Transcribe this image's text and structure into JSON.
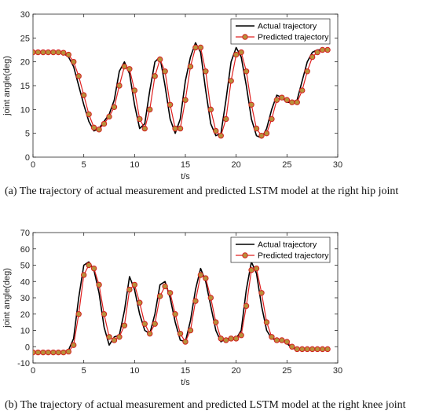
{
  "captions": {
    "a": "(a)   The trajectory of actual measurement and predicted LSTM model at the right hip joint",
    "b": "(b)   The trajectory of actual measurement and predicted LSTM model at the right knee joint"
  },
  "colors": {
    "actual": "#000000",
    "predicted_line": "#e02020",
    "predicted_marker_fill": "#b8913a",
    "predicted_marker_edge": "#d42020"
  },
  "chart_data": [
    {
      "type": "line",
      "title": "",
      "xlabel": "t/s",
      "ylabel": "joint angle(deg)",
      "xlim": [
        0,
        30
      ],
      "ylim": [
        0,
        30
      ],
      "xticks": [
        0,
        5,
        10,
        15,
        20,
        25,
        30
      ],
      "yticks": [
        0,
        5,
        10,
        15,
        20,
        25,
        30
      ],
      "legend_position": "top-right",
      "series": [
        {
          "name": "Actual trajectory",
          "x": [
            0,
            0.5,
            1,
            1.5,
            2,
            2.5,
            3,
            3.5,
            4,
            4.5,
            5,
            5.5,
            6,
            6.5,
            7,
            7.5,
            8,
            8.5,
            9,
            9.5,
            10,
            10.5,
            11,
            11.5,
            12,
            12.5,
            13,
            13.5,
            14,
            14.5,
            15,
            15.5,
            16,
            16.5,
            17,
            17.5,
            18,
            18.5,
            19,
            19.5,
            20,
            20.5,
            21,
            21.5,
            22,
            22.5,
            23,
            23.5,
            24,
            24.5,
            25,
            25.5,
            26,
            26.5,
            27,
            27.5,
            28,
            28.5,
            29
          ],
          "values": [
            22,
            22,
            22,
            22,
            22,
            21.9,
            21.8,
            21,
            19,
            15,
            11,
            7.5,
            5.5,
            6,
            7.5,
            9,
            12,
            18,
            20,
            17.5,
            11,
            6,
            7,
            14,
            20,
            21,
            15,
            8,
            5,
            8,
            16,
            21,
            24,
            22,
            14,
            7,
            4.5,
            5,
            12,
            20,
            23,
            21,
            15,
            8,
            4.5,
            4,
            6,
            10,
            13,
            12.5,
            11.5,
            11.5,
            12,
            16,
            20,
            22,
            22.5,
            22.5,
            22.5
          ]
        },
        {
          "name": "Predicted trajectory",
          "x": [
            0,
            0.5,
            1,
            1.5,
            2,
            2.5,
            3,
            3.5,
            4,
            4.5,
            5,
            5.5,
            6,
            6.5,
            7,
            7.5,
            8,
            8.5,
            9,
            9.5,
            10,
            10.5,
            11,
            11.5,
            12,
            12.5,
            13,
            13.5,
            14,
            14.5,
            15,
            15.5,
            16,
            16.5,
            17,
            17.5,
            18,
            18.5,
            19,
            19.5,
            20,
            20.5,
            21,
            21.5,
            22,
            22.5,
            23,
            23.5,
            24,
            24.5,
            25,
            25.5,
            26,
            26.5,
            27,
            27.5,
            28,
            28.5,
            29
          ],
          "values": [
            22,
            22,
            22,
            22,
            22,
            22,
            21.9,
            21.5,
            20,
            17,
            13,
            9,
            6.2,
            5.8,
            7,
            8.5,
            10.5,
            15,
            19,
            18.5,
            14,
            8,
            6,
            10,
            17,
            20.5,
            18,
            11,
            6,
            6,
            12,
            19,
            23,
            23,
            18,
            10,
            5.5,
            4.5,
            8,
            16,
            21.5,
            22,
            18,
            11,
            6,
            4.5,
            5,
            8,
            12,
            12.5,
            12,
            11.5,
            11.5,
            14,
            18,
            21,
            22,
            22.5,
            22.5
          ]
        }
      ]
    },
    {
      "type": "line",
      "title": "",
      "xlabel": "t/s",
      "ylabel": "joint angle(deg)",
      "xlim": [
        0,
        30
      ],
      "ylim": [
        -10,
        70
      ],
      "xticks": [
        0,
        5,
        10,
        15,
        20,
        25,
        30
      ],
      "yticks": [
        -10,
        0,
        10,
        20,
        30,
        40,
        50,
        60,
        70
      ],
      "legend_position": "top-right",
      "series": [
        {
          "name": "Actual trajectory",
          "x": [
            0,
            0.5,
            1,
            1.5,
            2,
            2.5,
            3,
            3.5,
            4,
            4.5,
            5,
            5.5,
            6,
            6.5,
            7,
            7.5,
            8,
            8.5,
            9,
            9.5,
            10,
            10.5,
            11,
            11.5,
            12,
            12.5,
            13,
            13.5,
            14,
            14.5,
            15,
            15.5,
            16,
            16.5,
            17,
            17.5,
            18,
            18.5,
            19,
            19.5,
            20,
            20.5,
            21,
            21.5,
            22,
            22.5,
            23,
            23.5,
            24,
            24.5,
            25,
            25.5,
            26,
            26.5,
            27,
            27.5,
            28,
            28.5,
            29
          ],
          "values": [
            -3.5,
            -3.5,
            -3.5,
            -3.5,
            -3.5,
            -3.5,
            -3.2,
            -2,
            5,
            30,
            50,
            52,
            47,
            33,
            12,
            1,
            6,
            7,
            22,
            43,
            35,
            20,
            10,
            8,
            20,
            38,
            40,
            30,
            15,
            4,
            3,
            16,
            35,
            48,
            40,
            25,
            10,
            3,
            5,
            5,
            5,
            10,
            35,
            52,
            45,
            25,
            10,
            5,
            4,
            4,
            2,
            -1,
            -1.5,
            -1.5,
            -1.5,
            -1.5,
            -1.5,
            -1.5,
            -1.5
          ]
        },
        {
          "name": "Predicted trajectory",
          "x": [
            0,
            0.5,
            1,
            1.5,
            2,
            2.5,
            3,
            3.5,
            4,
            4.5,
            5,
            5.5,
            6,
            6.5,
            7,
            7.5,
            8,
            8.5,
            9,
            9.5,
            10,
            10.5,
            11,
            11.5,
            12,
            12.5,
            13,
            13.5,
            14,
            14.5,
            15,
            15.5,
            16,
            16.5,
            17,
            17.5,
            18,
            18.5,
            19,
            19.5,
            20,
            20.5,
            21,
            21.5,
            22,
            22.5,
            23,
            23.5,
            24,
            24.5,
            25,
            25.5,
            26,
            26.5,
            27,
            27.5,
            28,
            28.5,
            29
          ],
          "values": [
            -3.5,
            -3.5,
            -3.5,
            -3.5,
            -3.5,
            -3.5,
            -3.5,
            -3,
            1,
            20,
            44,
            50,
            48,
            38,
            20,
            6,
            4,
            6,
            13,
            35,
            38,
            27,
            14,
            8,
            14,
            31,
            37,
            33,
            20,
            8,
            3,
            10,
            28,
            44,
            42,
            30,
            15,
            5,
            4,
            5,
            5,
            7,
            25,
            47,
            48,
            33,
            15,
            6,
            4,
            4,
            3,
            0,
            -1.5,
            -1.5,
            -1.5,
            -1.5,
            -1.5,
            -1.5,
            -1.5
          ]
        }
      ]
    }
  ]
}
